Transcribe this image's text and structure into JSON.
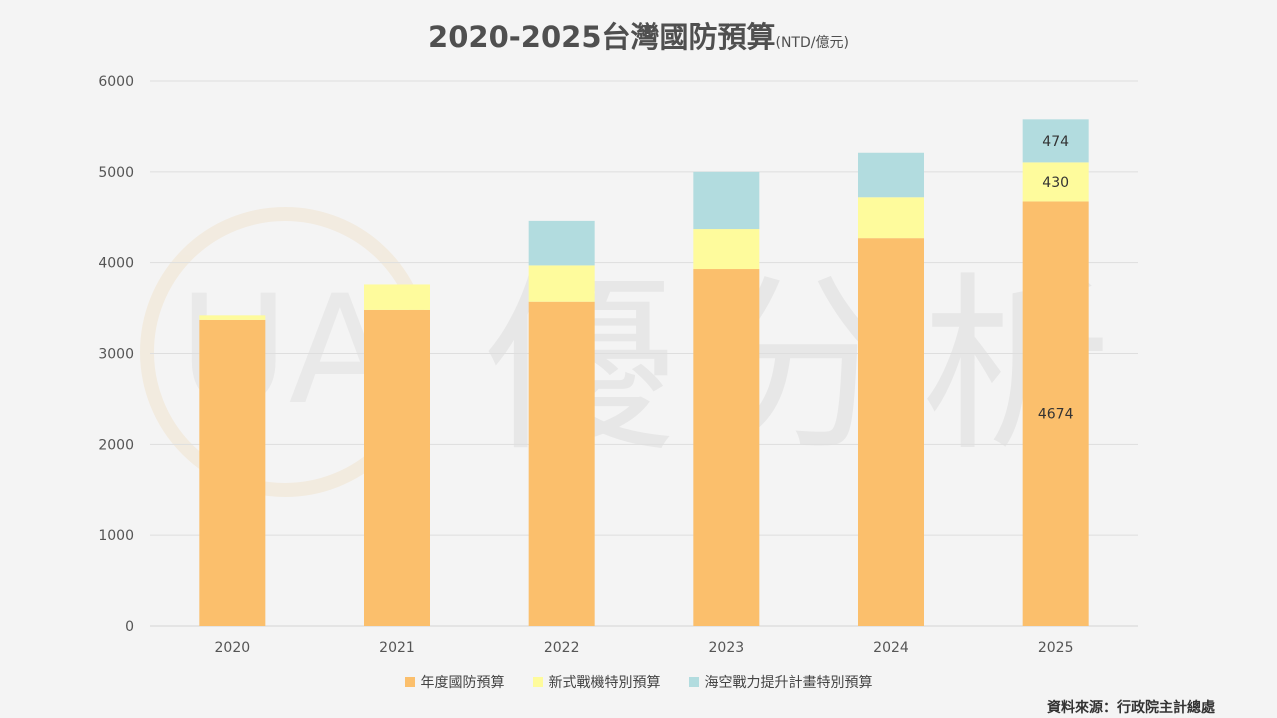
{
  "title": "2020-2025台灣國防預算",
  "unit": "(NTD/億元)",
  "source": "資料來源：行政院主計總處",
  "watermark": {
    "logo": "UA",
    "text": "優分析"
  },
  "colors": {
    "annual": "#fbbf6c",
    "fighter": "#fefb9c",
    "naval": "#b2dcdf",
    "grid": "#dedede",
    "axis": "#d4d4d4",
    "text": "#555555"
  },
  "chart_data": {
    "type": "bar",
    "stacked": true,
    "categories": [
      "2020",
      "2021",
      "2022",
      "2023",
      "2024",
      "2025"
    ],
    "series": [
      {
        "name": "年度國防預算",
        "color": "#fbbf6c",
        "values": [
          3370,
          3480,
          3570,
          3930,
          4270,
          4674
        ]
      },
      {
        "name": "新式戰機特別預算",
        "color": "#fefb9c",
        "values": [
          50,
          280,
          400,
          440,
          450,
          430
        ]
      },
      {
        "name": "海空戰力提升計畫特別預算",
        "color": "#b2dcdf",
        "values": [
          0,
          0,
          490,
          630,
          490,
          474
        ]
      }
    ],
    "ylim": [
      0,
      6000
    ],
    "yticks": [
      0,
      1000,
      2000,
      3000,
      4000,
      5000,
      6000
    ],
    "data_labels": [
      {
        "category": "2025",
        "series": 0,
        "text": "4674"
      },
      {
        "category": "2025",
        "series": 1,
        "text": "430"
      },
      {
        "category": "2025",
        "series": 2,
        "text": "474"
      }
    ],
    "grid": true,
    "legend_position": "bottom"
  }
}
